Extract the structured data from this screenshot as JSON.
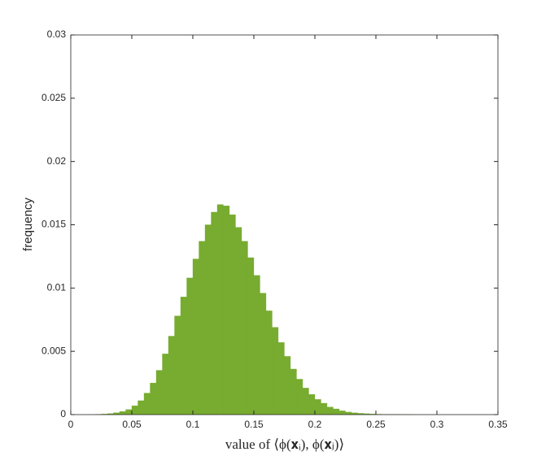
{
  "chart_data": {
    "type": "histogram",
    "xlabel": "value of ⟨ϕ(𝐱ᵢ), ϕ(𝐱ⱼ)⟩",
    "ylabel": "frequency",
    "color": "#77ac30",
    "bins": [
      0.02,
      0.025,
      0.03,
      0.035,
      0.04,
      0.045,
      0.05,
      0.055,
      0.06,
      0.065,
      0.07,
      0.075,
      0.08,
      0.085,
      0.09,
      0.095,
      0.1,
      0.105,
      0.11,
      0.115,
      0.12,
      0.125,
      0.13,
      0.135,
      0.14,
      0.145,
      0.15,
      0.155,
      0.16,
      0.165,
      0.17,
      0.175,
      0.18,
      0.185,
      0.19,
      0.195,
      0.2,
      0.205,
      0.21,
      0.215,
      0.22,
      0.225,
      0.23,
      0.235,
      0.24,
      0.245,
      0.25,
      0.255,
      0.26,
      0.265,
      0.27,
      0.275,
      0.28
    ],
    "values": [
      2e-05,
      4e-05,
      8e-05,
      0.00015,
      0.00025,
      0.0004,
      0.0007,
      0.0011,
      0.0017,
      0.0025,
      0.0035,
      0.0048,
      0.0062,
      0.0078,
      0.0093,
      0.0108,
      0.0123,
      0.0137,
      0.015,
      0.016,
      0.0166,
      0.0165,
      0.0158,
      0.0148,
      0.0137,
      0.0124,
      0.011,
      0.0096,
      0.0082,
      0.0069,
      0.0057,
      0.0046,
      0.0036,
      0.0028,
      0.0021,
      0.0016,
      0.0012,
      0.0009,
      0.0006,
      0.00045,
      0.0003,
      0.0002,
      0.00014,
      0.0001,
      7e-05,
      5e-05,
      3e-05,
      2e-05,
      1e-05,
      1e-05,
      5e-06,
      3e-06
    ],
    "xlim": [
      0,
      0.35
    ],
    "xticks": [
      0,
      0.05,
      0.1,
      0.15,
      0.2,
      0.25,
      0.3,
      0.35
    ],
    "ylim": [
      0,
      0.03
    ],
    "yticks": [
      0,
      0.005,
      0.01,
      0.015,
      0.02,
      0.025,
      0.03
    ]
  }
}
